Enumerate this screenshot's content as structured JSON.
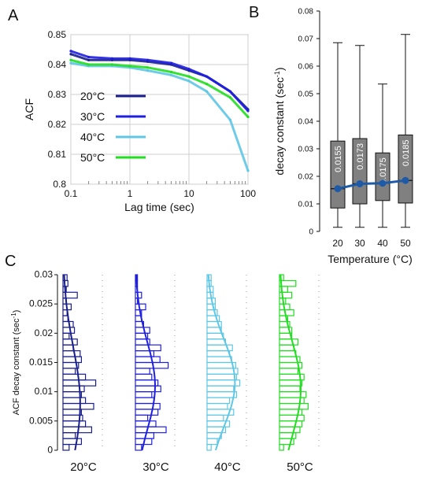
{
  "panel_letters": {
    "a": "A",
    "b": "B",
    "c": "C"
  },
  "chart_data": [
    {
      "panel": "A",
      "type": "line",
      "xlabel": "Lag time (sec)",
      "ylabel": "ACF",
      "x_scale": "log",
      "xlim": [
        0.1,
        100
      ],
      "ylim": [
        0.8,
        0.85
      ],
      "x_ticks": [
        "0.1",
        "1",
        "10",
        "100"
      ],
      "x_tick_values": [
        0.1,
        1,
        10,
        100
      ],
      "y_ticks": [
        "0.8",
        "0.81",
        "0.82",
        "0.83",
        "0.84",
        "0.85"
      ],
      "y_tick_values": [
        0.8,
        0.81,
        0.82,
        0.83,
        0.84,
        0.85
      ],
      "legend_position": "left-center",
      "x": [
        0.1,
        0.2,
        0.5,
        1,
        2,
        5,
        10,
        20,
        50,
        100
      ],
      "series": [
        {
          "name": "20°C",
          "color": "#1a1f8c",
          "values": [
            0.8435,
            0.8415,
            0.8415,
            0.8415,
            0.841,
            0.84,
            0.838,
            0.836,
            0.831,
            0.825
          ]
        },
        {
          "name": "30°C",
          "color": "#1f1fe0",
          "values": [
            0.8445,
            0.8425,
            0.842,
            0.842,
            0.8415,
            0.8405,
            0.8385,
            0.836,
            0.831,
            0.8245
          ]
        },
        {
          "name": "40°C",
          "color": "#5fc7e6",
          "values": [
            0.8405,
            0.8395,
            0.8395,
            0.839,
            0.838,
            0.8365,
            0.8345,
            0.831,
            0.8215,
            0.8045
          ]
        },
        {
          "name": "50°C",
          "color": "#22dd22",
          "values": [
            0.8415,
            0.84,
            0.84,
            0.8395,
            0.839,
            0.8375,
            0.836,
            0.8335,
            0.829,
            0.8225
          ]
        }
      ]
    },
    {
      "panel": "B",
      "type": "box",
      "xlabel": "Temperature (°C)",
      "ylabel_main": "decay constant (sec",
      "ylabel_sup": "-1",
      "ylabel_tail": ")",
      "ylim": [
        0,
        0.08
      ],
      "y_ticks": [
        "0",
        "0.01",
        "0.02",
        "0.03",
        "0.04",
        "0.05",
        "0.06",
        "0.07",
        "0.08"
      ],
      "y_tick_values": [
        0,
        0.01,
        0.02,
        0.03,
        0.04,
        0.05,
        0.06,
        0.07,
        0.08
      ],
      "categories": [
        "20",
        "30",
        "40",
        "50"
      ],
      "boxes": [
        {
          "whisker_low": 0.0015,
          "q1": 0.0085,
          "median": 0.0155,
          "q3": 0.0328,
          "whisker_high": 0.0685
        },
        {
          "whisker_low": 0.0015,
          "q1": 0.01,
          "median": 0.0173,
          "q3": 0.0337,
          "whisker_high": 0.0675
        },
        {
          "whisker_low": 0.0015,
          "q1": 0.0112,
          "median": 0.0175,
          "q3": 0.0285,
          "whisker_high": 0.0535
        },
        {
          "whisker_low": 0.0015,
          "q1": 0.0103,
          "median": 0.0185,
          "q3": 0.035,
          "whisker_high": 0.0715
        }
      ],
      "median_labels": [
        "0.0155",
        "0.0173",
        "0.0175",
        "0.0185"
      ],
      "trend_color": "#1f5aa6",
      "box_color": "#808080"
    },
    {
      "panel": "C",
      "type": "histogram",
      "ylabel_main": "ACF decay constant (sec",
      "ylabel_sup": "-1",
      "ylabel_tail": ")",
      "ylim": [
        0,
        0.03
      ],
      "y_ticks": [
        "0",
        "0.005",
        "0.01",
        "0.015",
        "0.02",
        "0.025",
        "0.03"
      ],
      "y_tick_values": [
        0,
        0.005,
        0.01,
        0.015,
        0.02,
        0.025,
        0.03
      ],
      "bin_width": 0.001,
      "series": [
        {
          "name": "20°C",
          "color": "#1a1f8c",
          "counts": [
            0.15,
            0.45,
            0.3,
            0.7,
            0.55,
            0.48,
            0.45,
            0.75,
            0.55,
            0.45,
            0.52,
            0.8,
            0.55,
            0.3,
            0.38,
            0.45,
            0.42,
            0.25,
            0.35,
            0.15,
            0.28,
            0.25,
            0.12,
            0.1,
            0.2,
            0.08,
            0.35,
            0.08,
            0.12,
            0.1
          ],
          "fit_peak": 0.008,
          "fit_sigma": 0.0095,
          "fit_amp": 0.42
        },
        {
          "name": "30°C",
          "color": "#1f1fe0",
          "counts": [
            0.15,
            0.4,
            0.45,
            0.75,
            0.5,
            0.3,
            0.55,
            0.6,
            0.45,
            0.4,
            0.62,
            0.55,
            0.4,
            0.35,
            0.8,
            0.6,
            0.45,
            0.62,
            0.35,
            0.3,
            0.35,
            0.2,
            0.15,
            0.15,
            0.25,
            0.05,
            0.15,
            0.05,
            0.05,
            0.05
          ],
          "fit_peak": 0.011,
          "fit_sigma": 0.0075,
          "fit_amp": 0.48
        },
        {
          "name": "40°C",
          "color": "#5fc7e6",
          "counts": [
            0.1,
            0.25,
            0.35,
            0.45,
            0.55,
            0.4,
            0.65,
            0.5,
            0.55,
            0.72,
            0.65,
            0.8,
            0.72,
            0.75,
            0.7,
            0.6,
            0.55,
            0.62,
            0.45,
            0.4,
            0.35,
            0.35,
            0.3,
            0.25,
            0.2,
            0.2,
            0.15,
            0.15,
            0.1,
            0.1
          ],
          "fit_peak": 0.0115,
          "fit_sigma": 0.0075,
          "fit_amp": 0.68
        },
        {
          "name": "50°C",
          "color": "#22dd22",
          "counts": [
            0.1,
            0.35,
            0.4,
            0.5,
            0.55,
            0.6,
            0.55,
            0.7,
            0.6,
            0.65,
            0.5,
            0.55,
            0.6,
            0.45,
            0.55,
            0.5,
            0.4,
            0.35,
            0.45,
            0.3,
            0.3,
            0.25,
            0.2,
            0.35,
            0.25,
            0.15,
            0.3,
            0.2,
            0.4,
            0.1
          ],
          "fit_peak": 0.0105,
          "fit_sigma": 0.008,
          "fit_amp": 0.52
        }
      ]
    }
  ]
}
